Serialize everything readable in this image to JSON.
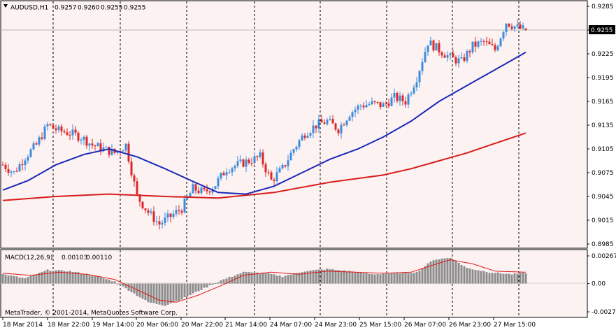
{
  "price_panel": {
    "title": "AUDUSD,H1",
    "ohlc_values": [
      "0.9257",
      "0.9260",
      "0.9255",
      "0.9255"
    ],
    "current_price": "0.9255",
    "price_axis_labels": [
      "0.9285",
      "0.9255",
      "0.9225",
      "0.9195",
      "0.9165",
      "0.9135",
      "0.9105",
      "0.9075",
      "0.9045",
      "0.9015",
      "0.8985"
    ],
    "menu_arrow": "triangle-down-icon"
  },
  "macd_panel": {
    "title": "MACD(12,26,9)",
    "values": [
      "0.00103",
      "0.00110"
    ],
    "axis_labels": [
      "0.00267",
      "0.00",
      "-0.00272"
    ]
  },
  "time_axis_labels": [
    "18 Mar 2014",
    "18 Mar 22:00",
    "19 Mar 14:00",
    "20 Mar 06:00",
    "20 Mar 22:00",
    "21 Mar 14:00",
    "24 Mar 07:00",
    "24 Mar 23:00",
    "25 Mar 15:00",
    "26 Mar 07:00",
    "26 Mar 23:00",
    "27 Mar 15:00"
  ],
  "copyright": "MetaTrader, © 2001-2014, MetaQuotes Software Corp.",
  "colors": {
    "background": "#fcf2f2",
    "bull_candle": "#3c8cdc",
    "bear_candle": "#dc2828",
    "fast_ma": "#1a2ab8",
    "slow_ma": "#d81c1c",
    "macd_hist": "#8c8c8c",
    "macd_signal": "#e01818"
  },
  "chart_data": [
    {
      "type": "candlestick",
      "symbol": "AUDUSD",
      "timeframe": "H1",
      "ylim": [
        0.8985,
        0.9285
      ],
      "close_path": [
        [
          0,
          0.9085
        ],
        [
          4,
          0.9075
        ],
        [
          8,
          0.9095
        ],
        [
          12,
          0.911
        ],
        [
          16,
          0.9135
        ],
        [
          20,
          0.9128
        ],
        [
          24,
          0.9125
        ],
        [
          28,
          0.912
        ],
        [
          32,
          0.911
        ],
        [
          36,
          0.9105
        ],
        [
          40,
          0.91
        ],
        [
          44,
          0.911
        ],
        [
          48,
          0.9045
        ],
        [
          52,
          0.9025
        ],
        [
          56,
          0.901
        ],
        [
          60,
          0.902
        ],
        [
          64,
          0.903
        ],
        [
          68,
          0.9055
        ],
        [
          72,
          0.905
        ],
        [
          76,
          0.906
        ],
        [
          80,
          0.908
        ],
        [
          84,
          0.9085
        ],
        [
          88,
          0.909
        ],
        [
          92,
          0.9095
        ],
        [
          96,
          0.9065
        ],
        [
          100,
          0.908
        ],
        [
          104,
          0.9105
        ],
        [
          108,
          0.9125
        ],
        [
          112,
          0.9135
        ],
        [
          116,
          0.914
        ],
        [
          120,
          0.913
        ],
        [
          124,
          0.915
        ],
        [
          128,
          0.916
        ],
        [
          132,
          0.9162
        ],
        [
          136,
          0.916
        ],
        [
          140,
          0.917
        ],
        [
          144,
          0.9165
        ],
        [
          148,
          0.9195
        ],
        [
          152,
          0.924
        ],
        [
          156,
          0.923
        ],
        [
          160,
          0.922
        ],
        [
          164,
          0.9215
        ],
        [
          168,
          0.9235
        ],
        [
          172,
          0.924
        ],
        [
          176,
          0.923
        ],
        [
          180,
          0.9265
        ],
        [
          184,
          0.9258
        ],
        [
          187,
          0.9255
        ]
      ]
    },
    {
      "type": "line",
      "name": "fast MA",
      "x": [
        0,
        9,
        19,
        29,
        38,
        48,
        58,
        68,
        77,
        87,
        97,
        107,
        117,
        127,
        136,
        146,
        156,
        166,
        176,
        187
      ],
      "y": [
        0.9053,
        0.9065,
        0.9085,
        0.9098,
        0.9105,
        0.9095,
        0.908,
        0.9064,
        0.905,
        0.9048,
        0.9058,
        0.9075,
        0.9092,
        0.9105,
        0.912,
        0.914,
        0.9165,
        0.9185,
        0.9205,
        0.9227
      ]
    },
    {
      "type": "line",
      "name": "slow MA",
      "x": [
        0,
        19,
        38,
        58,
        77,
        97,
        117,
        136,
        146,
        156,
        166,
        176,
        187
      ],
      "y": [
        0.904,
        0.9045,
        0.9048,
        0.9045,
        0.9043,
        0.905,
        0.9063,
        0.9072,
        0.908,
        0.909,
        0.91,
        0.9112,
        0.9125
      ]
    },
    {
      "type": "bar+line",
      "name": "MACD(12,26,9)",
      "ylim": [
        -0.00272,
        0.00267
      ],
      "hist_path": [
        [
          0,
          0.0009
        ],
        [
          8,
          0.0005
        ],
        [
          16,
          0.0013
        ],
        [
          24,
          0.0012
        ],
        [
          32,
          0.0008
        ],
        [
          40,
          0.0002
        ],
        [
          46,
          -0.0008
        ],
        [
          52,
          -0.0018
        ],
        [
          58,
          -0.0021
        ],
        [
          64,
          -0.0015
        ],
        [
          70,
          -0.0007
        ],
        [
          78,
          0.0003
        ],
        [
          86,
          0.0011
        ],
        [
          94,
          0.001
        ],
        [
          100,
          0.0007
        ],
        [
          108,
          0.0012
        ],
        [
          116,
          0.0014
        ],
        [
          124,
          0.0012
        ],
        [
          132,
          0.0009
        ],
        [
          140,
          0.001
        ],
        [
          148,
          0.0011
        ],
        [
          154,
          0.0023
        ],
        [
          160,
          0.0025
        ],
        [
          166,
          0.0015
        ],
        [
          174,
          0.0011
        ],
        [
          182,
          0.0009
        ],
        [
          187,
          0.00103
        ]
      ],
      "signal_path": [
        [
          0,
          0.001
        ],
        [
          10,
          0.0008
        ],
        [
          20,
          0.0011
        ],
        [
          30,
          0.0009
        ],
        [
          40,
          0.0004
        ],
        [
          48,
          -0.0006
        ],
        [
          56,
          -0.0016
        ],
        [
          62,
          -0.0018
        ],
        [
          70,
          -0.0011
        ],
        [
          78,
          -0.0002
        ],
        [
          86,
          0.0008
        ],
        [
          96,
          0.0011
        ],
        [
          106,
          0.0009
        ],
        [
          116,
          0.0012
        ],
        [
          126,
          0.0011
        ],
        [
          136,
          0.001
        ],
        [
          146,
          0.0011
        ],
        [
          154,
          0.0018
        ],
        [
          160,
          0.0023
        ],
        [
          168,
          0.0019
        ],
        [
          176,
          0.0012
        ],
        [
          187,
          0.0011
        ]
      ]
    }
  ]
}
